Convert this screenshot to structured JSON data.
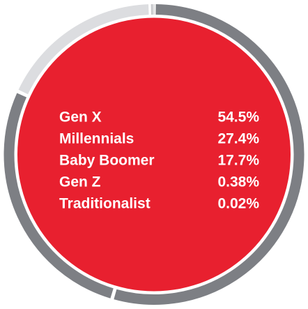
{
  "chart_data": {
    "type": "pie",
    "categories": [
      "Gen X",
      "Millennials",
      "Baby Boomer",
      "Gen Z",
      "Traditionalist"
    ],
    "values": [
      54.5,
      27.4,
      17.7,
      0.38,
      0.02
    ],
    "value_labels": [
      "54.5%",
      "27.4%",
      "17.7%",
      "0.38%",
      "0.02%"
    ],
    "colors": [
      "#7d7f84",
      "#7d7f84",
      "#dcdde0",
      "#c9cacd",
      "#9a9ca0"
    ],
    "center_color": "#e8202f"
  }
}
